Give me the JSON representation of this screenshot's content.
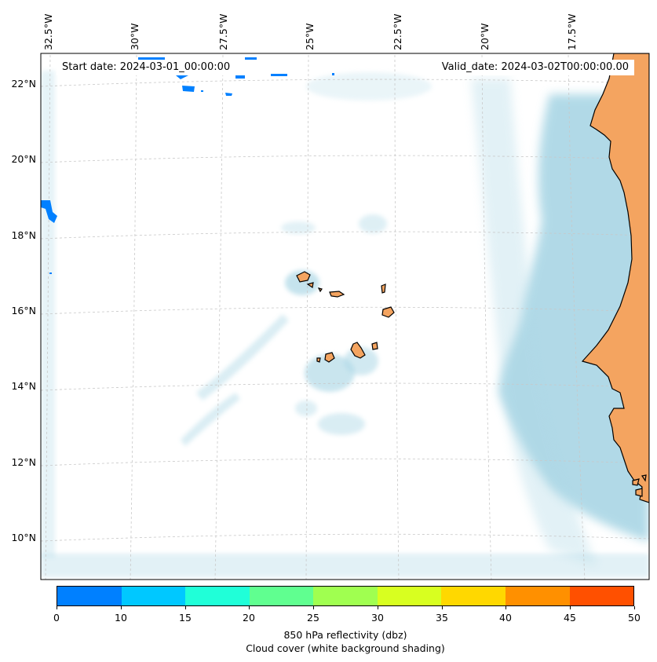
{
  "map": {
    "start_label": "Start date: 2024-03-01_00:00:00",
    "valid_label": "Valid_date: 2024-03-02T00:00:00.00",
    "lon_labels": [
      "32.5°W",
      "30°W",
      "27.5°W",
      "25°W",
      "22.5°W",
      "20°W",
      "17.5°W"
    ],
    "lat_labels": [
      "22°N",
      "20°N",
      "18°N",
      "16°N",
      "14°N",
      "12°N",
      "10°N"
    ],
    "land_color": "#f4a460",
    "cloud_color": "#add8e6",
    "reflectivity_color": "#0080ff"
  },
  "colorbar": {
    "ticks": [
      "0",
      "10",
      "15",
      "20",
      "25",
      "30",
      "35",
      "40",
      "45",
      "50"
    ],
    "colors": [
      "#0080ff",
      "#00c8ff",
      "#20ffd8",
      "#60ff90",
      "#a0ff50",
      "#d8ff20",
      "#ffd800",
      "#ff9000",
      "#ff5000"
    ],
    "label": "850 hPa reflectivity (dbz)",
    "sublabel": "Cloud cover (white background shading)"
  }
}
